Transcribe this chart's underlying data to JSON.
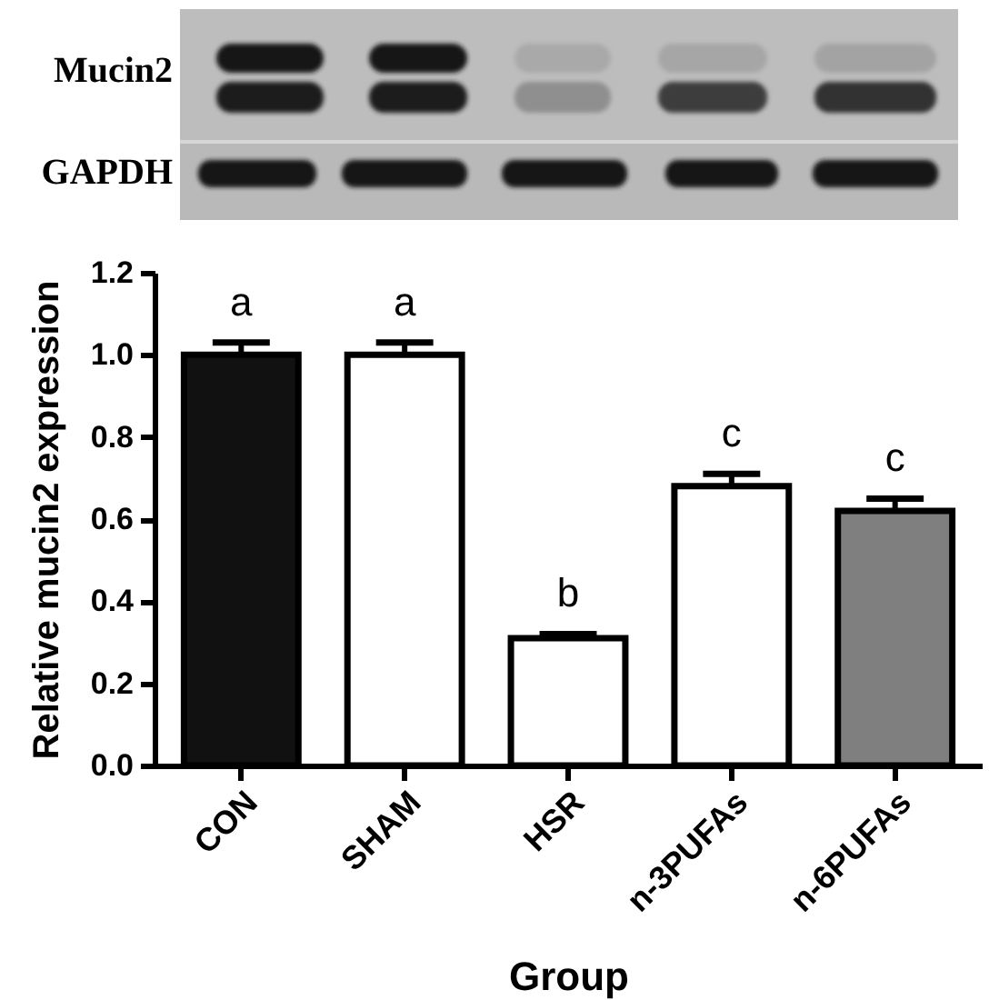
{
  "chart_data": {
    "type": "bar",
    "xlabel": "Group",
    "ylabel": "Relative mucin2 expression",
    "categories": [
      "CON",
      "SHAM",
      "HSR",
      "n-3PUFAs",
      "n-6PUFAs"
    ],
    "values": [
      1.0,
      1.0,
      0.31,
      0.68,
      0.62
    ],
    "colors": [
      "#111111",
      "#ffffff",
      "#ffffff",
      "#ffffff",
      "#7f7f7f"
    ],
    "errors": [
      [
        1.0,
        1.03
      ],
      [
        1.0,
        1.03
      ],
      [
        0.31,
        0.32
      ],
      [
        0.68,
        0.71
      ],
      [
        0.62,
        0.65
      ]
    ],
    "ylim": [
      0,
      1.2
    ],
    "yticks": [
      {
        "value": 0,
        "label": "0.0"
      },
      0.2,
      0.4,
      0.6,
      0.8,
      {
        "value": 1,
        "label": "1.0"
      },
      1.2
    ],
    "annotations": [
      "Mucin2",
      "GAPDH",
      "a",
      "a",
      "b",
      "c",
      "c"
    ]
  }
}
